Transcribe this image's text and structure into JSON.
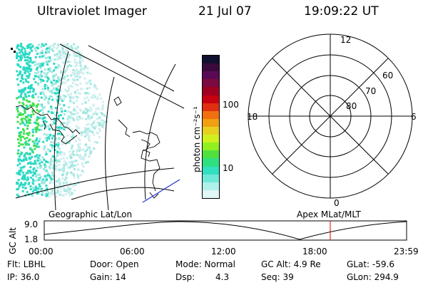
{
  "header": {
    "title": "Ultraviolet Imager",
    "date": "21 Jul 07",
    "time": "19:09:22 UT"
  },
  "colorbar": {
    "label": "photon cm⁻²s⁻¹",
    "ticks": [
      "100",
      "10"
    ],
    "colors": [
      "#101030",
      "#3a0a3a",
      "#5a0a55",
      "#7a0a40",
      "#a00020",
      "#c80010",
      "#e03010",
      "#f07010",
      "#f0a010",
      "#e8d020",
      "#d0f020",
      "#90f020",
      "#50e040",
      "#30e080",
      "#30e0c0",
      "#70e8d8",
      "#b0f0ea",
      "#e0f8f6"
    ]
  },
  "map": {
    "label": "Geographic Lat/Lon",
    "aurora_colors": [
      "#2ad9c4",
      "#40e050",
      "#9ee8e0",
      "#cfeeee"
    ]
  },
  "polar": {
    "label": "Apex MLat/MLT",
    "mlt": [
      "12",
      "18",
      "6",
      "0"
    ],
    "lats": [
      "60",
      "70",
      "80"
    ]
  },
  "timeline": {
    "axis_label": "GC Alt",
    "y_ticks": [
      "9.0",
      "1.8"
    ],
    "x_ticks": [
      "00:00",
      "06:00",
      "12:00",
      "18:00",
      "23:59"
    ],
    "marker_color": "#e00000"
  },
  "info": {
    "filter": "Flt: LBHL",
    "ip": "IP: 36.0",
    "door": "Door: Open",
    "gain": "Gain: 14",
    "mode": "Mode: Normal",
    "dsp_label": "Dsp:",
    "dsp_value": "4.3",
    "gc_alt": "GC Alt: 4.9 Re",
    "seq": "Seq: 39",
    "glat": "GLat: -59.6",
    "glon": "GLon: 294.9"
  }
}
